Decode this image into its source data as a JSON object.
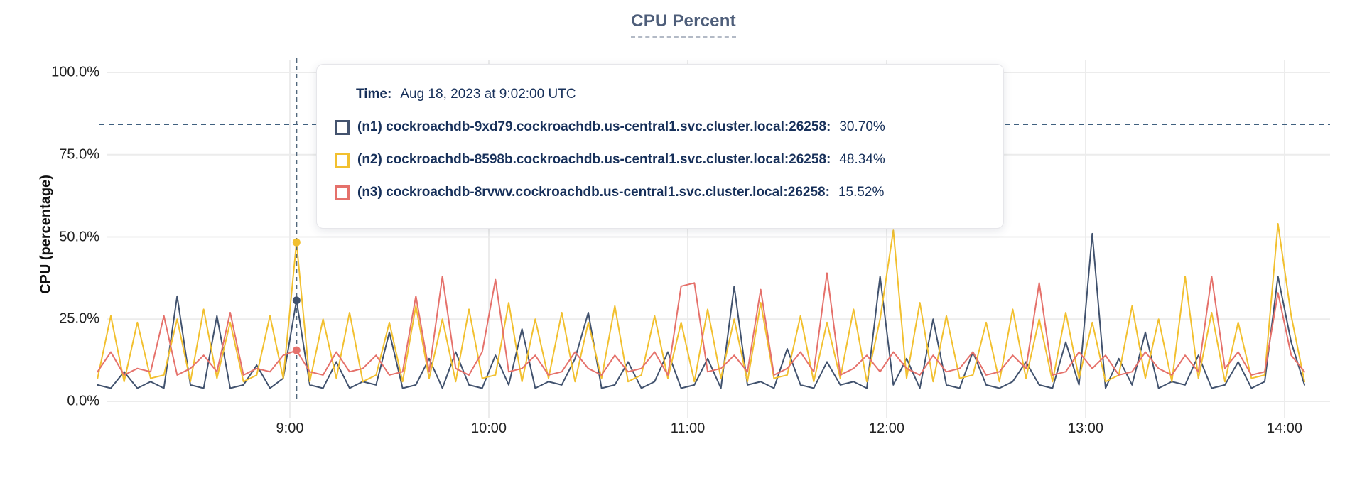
{
  "header": {
    "title": "CPU Percent"
  },
  "tooltip": {
    "time_label": "Time:",
    "time_value": "Aug 18, 2023 at 9:02:00 UTC",
    "series": [
      {
        "name": "(n1) cockroachdb-9xd79.cockroachdb.us-central1.svc.cluster.local:26258:",
        "value": "30.70%",
        "color": "#44536e"
      },
      {
        "name": "(n2) cockroachdb-8598b.cockroachdb.us-central1.svc.cluster.local:26258:",
        "value": "48.34%",
        "color": "#f2c02f"
      },
      {
        "name": "(n3) cockroachdb-8rvwv.cockroachdb.us-central1.svc.cluster.local:26258:",
        "value": "15.52%",
        "color": "#e5716b"
      }
    ]
  },
  "colors": {
    "title": "#4e5e7a",
    "grid": "#ececec",
    "tick_text": "#222222",
    "tooltip_text": "#17305a",
    "crosshair": "#51677c",
    "threshold": "#40607f",
    "n1": "#41526e",
    "n2": "#f2c02f",
    "n3": "#e5716b"
  },
  "chart_data": {
    "type": "line",
    "title": "CPU Percent",
    "xlabel": "",
    "ylabel": "CPU (percentage)",
    "ylim": [
      0,
      100
    ],
    "grid": true,
    "legend_position": "tooltip-overlay",
    "y_ticks": [
      "0.0%",
      "25.0%",
      "50.0%",
      "75.0%",
      "100.0%"
    ],
    "y_tick_values": [
      0,
      25,
      50,
      75,
      100
    ],
    "x_ticks": [
      "9:00",
      "10:00",
      "11:00",
      "12:00",
      "13:00",
      "14:00"
    ],
    "x_tick_hours": [
      9,
      10,
      11,
      12,
      13,
      14
    ],
    "x_start_time": "8:02",
    "x_end_time": "14:06",
    "x_step_minutes": 4,
    "threshold_percent": 84.2,
    "crosshair": {
      "time": "9:02",
      "time_hour": 9.0333,
      "values": [
        30.7,
        48.34,
        15.52
      ]
    },
    "series": [
      {
        "name": "(n1) cockroachdb-9xd79.cockroachdb.us-central1.svc.cluster.local:26258",
        "color": "#41526e",
        "values": [
          5,
          4,
          9,
          4,
          6,
          4,
          32,
          5,
          4,
          26,
          4,
          5,
          11,
          4,
          7,
          30.7,
          5,
          4,
          12,
          4,
          6,
          5,
          21,
          4,
          5,
          13,
          4,
          15,
          5,
          4,
          14,
          5,
          22,
          4,
          6,
          5,
          13,
          27,
          4,
          5,
          12,
          4,
          6,
          15,
          4,
          5,
          13,
          4,
          35,
          5,
          6,
          4,
          16,
          5,
          4,
          12,
          5,
          6,
          4,
          38,
          5,
          13,
          4,
          25,
          5,
          4,
          15,
          5,
          4,
          6,
          12,
          5,
          4,
          18,
          5,
          51,
          4,
          13,
          5,
          21,
          4,
          6,
          5,
          14,
          4,
          5,
          12,
          4,
          6,
          38,
          18,
          5
        ]
      },
      {
        "name": "(n2) cockroachdb-8598b.cockroachdb.us-central1.svc.cluster.local:26258",
        "color": "#f2c02f",
        "values": [
          7,
          26,
          6,
          24,
          7,
          8,
          25,
          6,
          28,
          7,
          24,
          6,
          8,
          26,
          7,
          48.34,
          6,
          25,
          7,
          27,
          6,
          8,
          24,
          6,
          29,
          7,
          25,
          6,
          28,
          7,
          8,
          30,
          6,
          25,
          7,
          27,
          6,
          24,
          7,
          29,
          6,
          8,
          26,
          7,
          24,
          6,
          28,
          7,
          25,
          6,
          30,
          7,
          8,
          26,
          6,
          24,
          7,
          28,
          6,
          25,
          52,
          7,
          30,
          6,
          26,
          7,
          8,
          24,
          6,
          28,
          7,
          25,
          6,
          27,
          7,
          24,
          6,
          8,
          29,
          7,
          25,
          6,
          38,
          7,
          27,
          6,
          24,
          7,
          8,
          54,
          26,
          6
        ]
      },
      {
        "name": "(n3) cockroachdb-8rvwv.cockroachdb.us-central1.svc.cluster.local:26258",
        "color": "#e5716b",
        "values": [
          9,
          15,
          8,
          10,
          9,
          26,
          8,
          10,
          14,
          9,
          27,
          8,
          10,
          9,
          14,
          15.52,
          9,
          8,
          15,
          9,
          10,
          14,
          8,
          9,
          32,
          9,
          38,
          10,
          8,
          15,
          37,
          9,
          10,
          14,
          8,
          9,
          15,
          10,
          8,
          14,
          9,
          10,
          15,
          8,
          35,
          36,
          9,
          10,
          14,
          9,
          34,
          8,
          10,
          15,
          9,
          39,
          8,
          10,
          14,
          9,
          15,
          10,
          8,
          14,
          9,
          10,
          15,
          8,
          9,
          14,
          10,
          36,
          8,
          9,
          15,
          10,
          14,
          8,
          9,
          15,
          10,
          8,
          14,
          9,
          38,
          10,
          15,
          8,
          9,
          33,
          14,
          9
        ]
      }
    ]
  }
}
